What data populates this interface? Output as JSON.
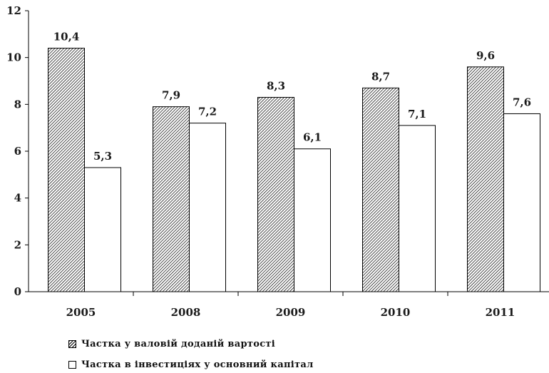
{
  "chart_data": {
    "type": "bar",
    "categories": [
      "2005",
      "2008",
      "2009",
      "2010",
      "2011"
    ],
    "series": [
      {
        "name": "Частка у валовій доданій вартості",
        "values": [
          10.4,
          7.9,
          8.3,
          8.7,
          9.6
        ],
        "labels": [
          "10,4",
          "7,9",
          "8,3",
          "8,7",
          "9,6"
        ],
        "fill": "hatched"
      },
      {
        "name": "Частка в інвестиціях у основний капітал",
        "values": [
          5.3,
          7.2,
          6.1,
          7.1,
          7.6
        ],
        "labels": [
          "5,3",
          "7,2",
          "6,1",
          "7,1",
          "7,6"
        ],
        "fill": "white"
      }
    ],
    "yticks": [
      "0",
      "2",
      "4",
      "6",
      "8",
      "10",
      "12"
    ],
    "ylim": [
      0,
      12
    ],
    "grid": false,
    "legend_position": "bottom-left"
  },
  "colors": {
    "outline": "#000000",
    "text": "#1a1a1a",
    "background": "#ffffff"
  }
}
